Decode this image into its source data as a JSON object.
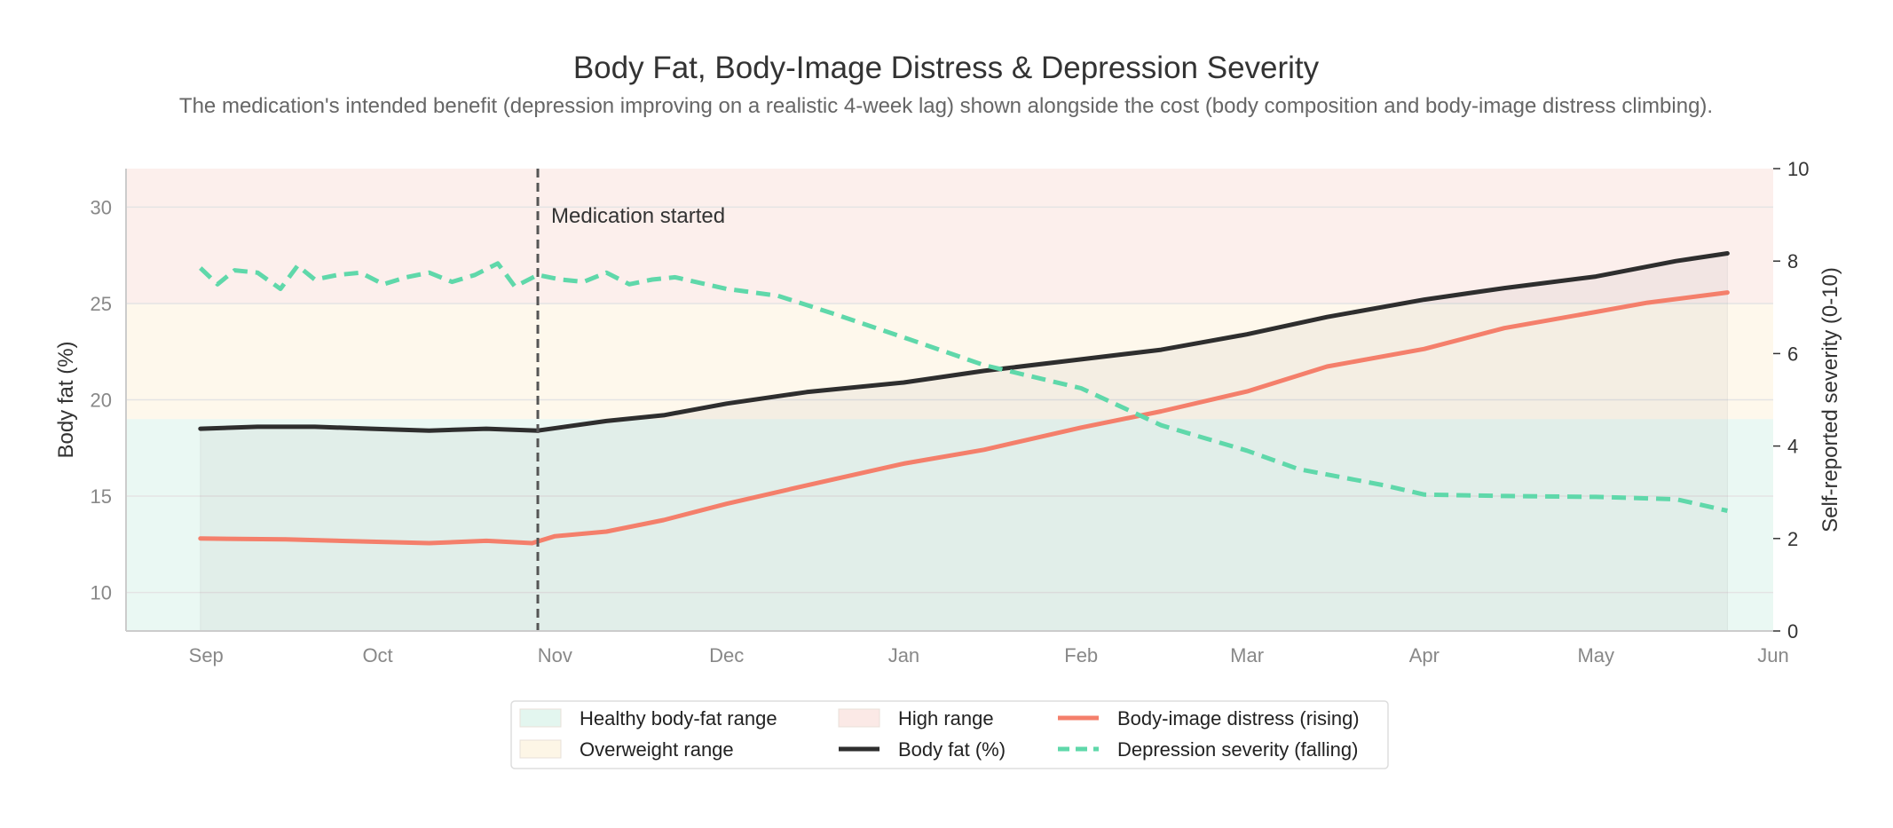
{
  "chart_data": {
    "type": "line",
    "title": "Body Fat, Body-Image Distress & Depression Severity",
    "subtitle": "The medication's intended benefit (depression improving on a realistic 4-week lag) shown alongside the cost (body composition and body-image distress climbing).",
    "x_axis": {
      "type": "date",
      "range": [
        "2023-08-18",
        "2024-06-01"
      ],
      "tick_labels": [
        "Sep",
        "Oct",
        "Nov",
        "Dec",
        "Jan",
        "Feb",
        "Mar",
        "Apr",
        "May",
        "Jun"
      ],
      "tick_dates": [
        "2023-09-01",
        "2023-10-01",
        "2023-11-01",
        "2023-12-01",
        "2024-01-01",
        "2024-02-01",
        "2024-03-01",
        "2024-04-01",
        "2024-05-01",
        "2024-06-01"
      ]
    },
    "y_left": {
      "label": "Body fat (%)",
      "range": [
        8,
        32
      ],
      "ticks": [
        10,
        15,
        20,
        25,
        30
      ]
    },
    "y_right": {
      "label": "Self-reported severity (0-10)",
      "range": [
        0,
        10
      ],
      "ticks": [
        0,
        2,
        4,
        6,
        8,
        10
      ]
    },
    "grid": true,
    "bands": [
      {
        "name": "Healthy body-fat range",
        "from": 8,
        "to": 19,
        "color": "#e3f6ef"
      },
      {
        "name": "Overweight range",
        "from": 19,
        "to": 25,
        "color": "#fdf6e6"
      },
      {
        "name": "High range",
        "from": 25,
        "to": 32,
        "color": "#fbe9e6"
      }
    ],
    "annotations": [
      {
        "date": "2023-10-29",
        "text": "Medication started"
      }
    ],
    "series": [
      {
        "name": "Body fat (%)",
        "axis": "left",
        "color": "#2e2e2e",
        "style": "solid",
        "points": [
          [
            "2023-08-31",
            18.5
          ],
          [
            "2023-09-10",
            18.6
          ],
          [
            "2023-09-20",
            18.6
          ],
          [
            "2023-09-30",
            18.5
          ],
          [
            "2023-10-10",
            18.4
          ],
          [
            "2023-10-20",
            18.5
          ],
          [
            "2023-10-29",
            18.4
          ],
          [
            "2023-11-10",
            18.9
          ],
          [
            "2023-11-20",
            19.2
          ],
          [
            "2023-12-01",
            19.8
          ],
          [
            "2023-12-15",
            20.4
          ],
          [
            "2024-01-01",
            20.9
          ],
          [
            "2024-01-15",
            21.5
          ],
          [
            "2024-02-01",
            22.1
          ],
          [
            "2024-02-15",
            22.6
          ],
          [
            "2024-03-01",
            23.4
          ],
          [
            "2024-03-15",
            24.3
          ],
          [
            "2024-04-01",
            25.2
          ],
          [
            "2024-04-15",
            25.8
          ],
          [
            "2024-05-01",
            26.4
          ],
          [
            "2024-05-15",
            27.2
          ],
          [
            "2024-05-24",
            27.6
          ]
        ]
      },
      {
        "name": "Body-image distress (rising)",
        "axis": "right",
        "color": "#f47f6b",
        "style": "solid",
        "points": [
          [
            "2023-08-31",
            2.0
          ],
          [
            "2023-09-15",
            1.98
          ],
          [
            "2023-09-30",
            1.93
          ],
          [
            "2023-10-10",
            1.9
          ],
          [
            "2023-10-20",
            1.95
          ],
          [
            "2023-10-28",
            1.9
          ],
          [
            "2023-11-01",
            2.05
          ],
          [
            "2023-11-10",
            2.15
          ],
          [
            "2023-11-20",
            2.4
          ],
          [
            "2023-12-01",
            2.75
          ],
          [
            "2023-12-15",
            3.15
          ],
          [
            "2024-01-01",
            3.62
          ],
          [
            "2024-01-15",
            3.92
          ],
          [
            "2024-02-01",
            4.4
          ],
          [
            "2024-02-15",
            4.75
          ],
          [
            "2024-03-01",
            5.18
          ],
          [
            "2024-03-15",
            5.72
          ],
          [
            "2024-04-01",
            6.1
          ],
          [
            "2024-04-15",
            6.55
          ],
          [
            "2024-05-01",
            6.9
          ],
          [
            "2024-05-10",
            7.1
          ],
          [
            "2024-05-24",
            7.32
          ]
        ]
      },
      {
        "name": "Depression severity (falling)",
        "axis": "right",
        "color": "#5fd8aa",
        "style": "dashed",
        "points": [
          [
            "2023-08-31",
            7.85
          ],
          [
            "2023-09-03",
            7.5
          ],
          [
            "2023-09-06",
            7.8
          ],
          [
            "2023-09-10",
            7.75
          ],
          [
            "2023-09-14",
            7.4
          ],
          [
            "2023-09-17",
            7.9
          ],
          [
            "2023-09-20",
            7.6
          ],
          [
            "2023-09-24",
            7.7
          ],
          [
            "2023-09-28",
            7.75
          ],
          [
            "2023-10-02",
            7.5
          ],
          [
            "2023-10-06",
            7.65
          ],
          [
            "2023-10-10",
            7.75
          ],
          [
            "2023-10-14",
            7.55
          ],
          [
            "2023-10-18",
            7.7
          ],
          [
            "2023-10-22",
            7.95
          ],
          [
            "2023-10-25",
            7.45
          ],
          [
            "2023-10-29",
            7.7
          ],
          [
            "2023-11-02",
            7.6
          ],
          [
            "2023-11-06",
            7.55
          ],
          [
            "2023-11-10",
            7.75
          ],
          [
            "2023-11-14",
            7.5
          ],
          [
            "2023-11-18",
            7.6
          ],
          [
            "2023-11-22",
            7.65
          ],
          [
            "2023-12-01",
            7.4
          ],
          [
            "2023-12-10",
            7.25
          ],
          [
            "2023-12-20",
            6.85
          ],
          [
            "2024-01-01",
            6.35
          ],
          [
            "2024-01-15",
            5.75
          ],
          [
            "2024-02-01",
            5.25
          ],
          [
            "2024-02-15",
            4.45
          ],
          [
            "2024-03-01",
            3.9
          ],
          [
            "2024-03-10",
            3.5
          ],
          [
            "2024-03-25",
            3.15
          ],
          [
            "2024-04-01",
            2.95
          ],
          [
            "2024-04-15",
            2.92
          ],
          [
            "2024-05-01",
            2.9
          ],
          [
            "2024-05-15",
            2.85
          ],
          [
            "2024-05-24",
            2.6
          ]
        ]
      }
    ],
    "legend": {
      "placement": "bottom-center",
      "items": [
        {
          "label": "Healthy body-fat range",
          "kind": "patch",
          "color": "#e3f6ef"
        },
        {
          "label": "Overweight range",
          "kind": "patch",
          "color": "#fdf6e6"
        },
        {
          "label": "High range",
          "kind": "patch",
          "color": "#fbe9e6"
        },
        {
          "label": "Body fat (%)",
          "kind": "line",
          "color": "#2e2e2e",
          "dash": false
        },
        {
          "label": "Body-image distress (rising)",
          "kind": "line",
          "color": "#f47f6b",
          "dash": false
        },
        {
          "label": "Depression severity (falling)",
          "kind": "line",
          "color": "#5fd8aa",
          "dash": true
        }
      ]
    }
  }
}
